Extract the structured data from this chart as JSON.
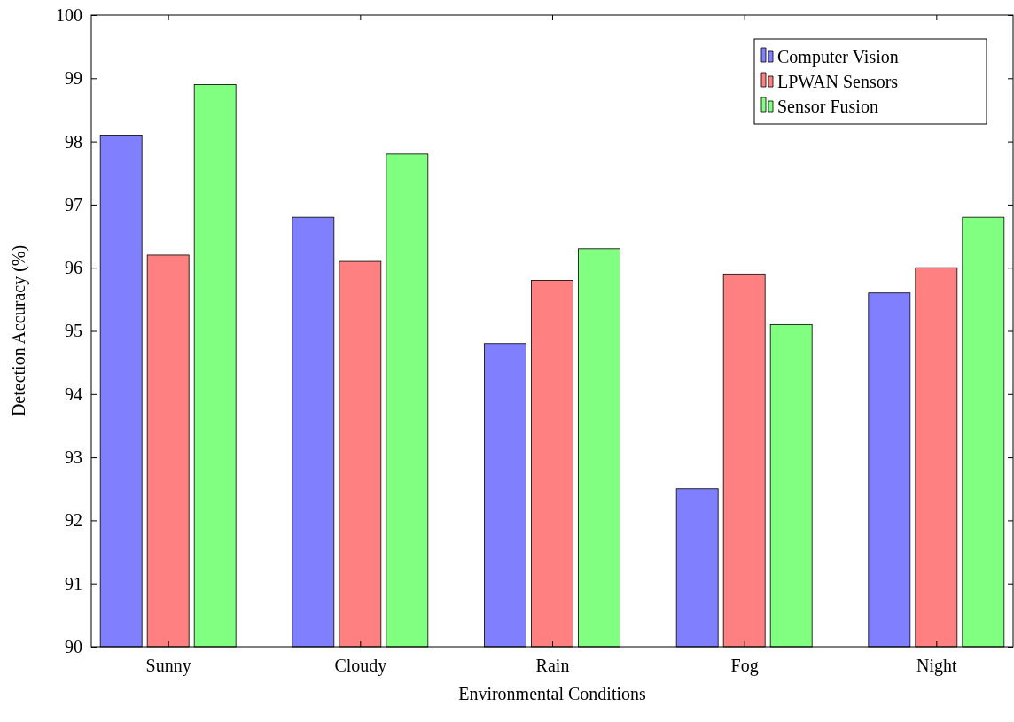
{
  "chart_data": {
    "type": "bar",
    "xlabel": "Environmental Conditions",
    "ylabel": "Detection Accuracy (%)",
    "categories": [
      "Sunny",
      "Cloudy",
      "Rain",
      "Fog",
      "Night"
    ],
    "series": [
      {
        "name": "Computer Vision",
        "color": "#8080ff",
        "values": [
          98.1,
          96.8,
          94.8,
          92.5,
          95.6
        ]
      },
      {
        "name": "LPWAN Sensors",
        "color": "#ff8080",
        "values": [
          96.2,
          96.1,
          95.8,
          95.9,
          96.0
        ]
      },
      {
        "name": "Sensor Fusion",
        "color": "#80ff80",
        "values": [
          98.9,
          97.8,
          96.3,
          95.1,
          96.8
        ]
      }
    ],
    "ylim": [
      90,
      100
    ],
    "yticks": [
      90,
      91,
      92,
      93,
      94,
      95,
      96,
      97,
      98,
      99,
      100
    ],
    "grid": false,
    "legend": "top right"
  }
}
